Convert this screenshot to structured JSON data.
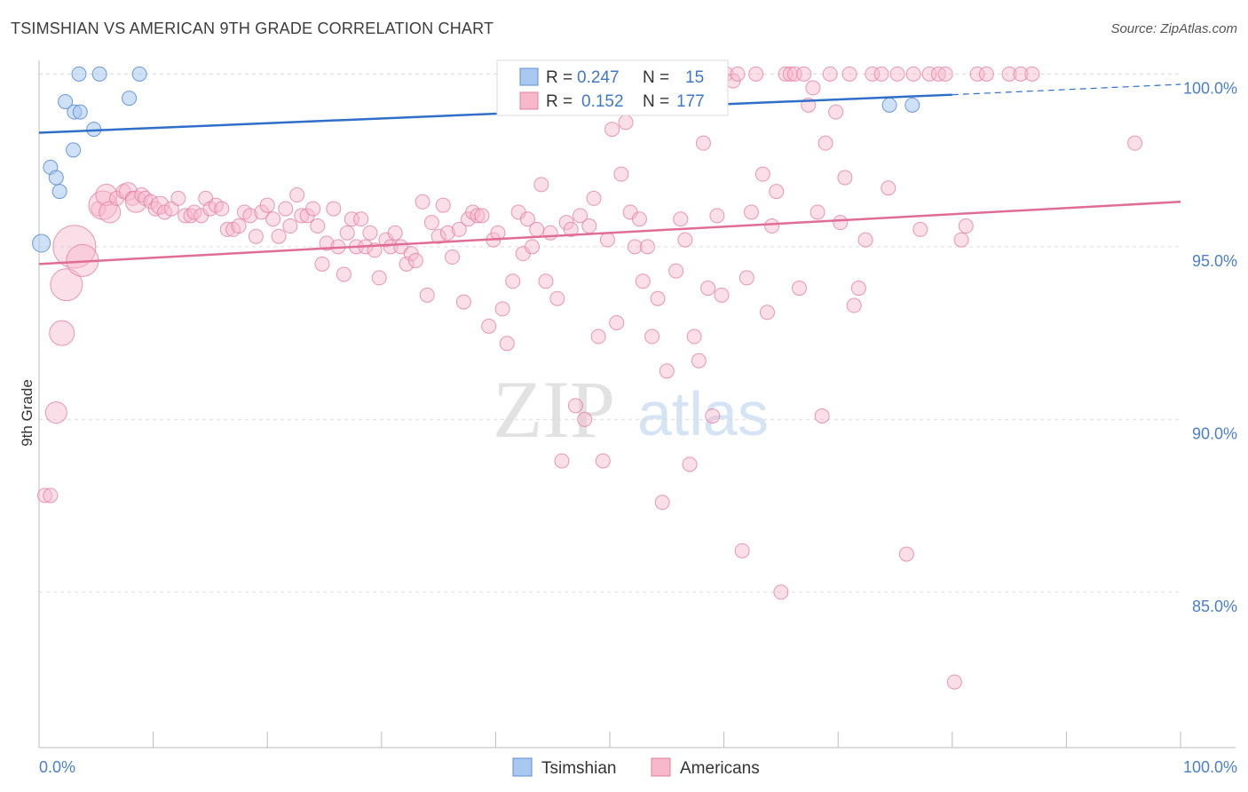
{
  "title": "TSIMSHIAN VS AMERICAN 9TH GRADE CORRELATION CHART",
  "source": "Source: ZipAtlas.com",
  "watermark": {
    "zip": "ZIP",
    "atlas": "atlas"
  },
  "chart_data": {
    "type": "scatter",
    "ylabel": "9th Grade",
    "xlim": [
      0,
      100
    ],
    "ylim": [
      80.5,
      100.6
    ],
    "x_ticks": [
      0,
      10,
      20,
      30,
      40,
      50,
      60,
      70,
      80,
      90,
      100
    ],
    "x_tick_labels": [
      "0.0%",
      "100.0%"
    ],
    "y_ticks": [
      85,
      90,
      95,
      100
    ],
    "y_tick_labels": [
      "85.0%",
      "90.0%",
      "95.0%",
      "100.0%"
    ],
    "grid": true,
    "legend_position": "top-center",
    "colors": {
      "tsimshian_fill": "#a8c8f0",
      "tsimshian_stroke": "#5b8fd6",
      "tsimshian_line": "#2f6fc9",
      "americans_fill": "#f7b8cb",
      "americans_stroke": "#e3809f",
      "americans_line": "#e06d93"
    },
    "series": [
      {
        "name": "Tsimshian",
        "r_label": "R = ",
        "r_value": "0.247",
        "n_label": "N = ",
        "n_value": "15",
        "trend": {
          "x": [
            0,
            80
          ],
          "y": [
            98.3,
            99.4
          ],
          "dashed_to": [
            100,
            99.7
          ]
        },
        "points": [
          [
            0.2,
            95.1,
            10
          ],
          [
            1.0,
            97.3,
            8
          ],
          [
            1.5,
            97.0,
            8
          ],
          [
            1.8,
            96.6,
            8
          ],
          [
            2.3,
            99.2,
            8
          ],
          [
            3.1,
            98.9,
            8
          ],
          [
            3.0,
            97.8,
            8
          ],
          [
            3.5,
            100,
            8
          ],
          [
            3.6,
            98.9,
            8
          ],
          [
            4.8,
            98.4,
            8
          ],
          [
            5.3,
            100,
            8
          ],
          [
            7.9,
            99.3,
            8
          ],
          [
            8.8,
            100,
            8
          ],
          [
            74.5,
            99.1,
            8
          ],
          [
            76.5,
            99.1,
            8
          ]
        ]
      },
      {
        "name": "Americans",
        "r_label": "R = ",
        "r_value": "0.152",
        "n_label": "N = ",
        "n_value": "177",
        "trend": {
          "x": [
            0,
            100
          ],
          "y": [
            94.5,
            96.3
          ]
        },
        "points": [
          [
            0.5,
            87.8,
            8
          ],
          [
            1.0,
            87.8,
            8
          ],
          [
            1.5,
            90.2,
            12
          ],
          [
            2.0,
            92.5,
            14
          ],
          [
            2.4,
            93.9,
            18
          ],
          [
            3.1,
            95.0,
            24
          ],
          [
            3.8,
            94.6,
            18
          ],
          [
            5.2,
            96.1,
            8
          ],
          [
            5.6,
            96.2,
            16
          ],
          [
            5.9,
            96.5,
            12
          ],
          [
            6.2,
            96.0,
            12
          ],
          [
            6.8,
            96.4,
            8
          ],
          [
            7.4,
            96.6,
            8
          ],
          [
            7.8,
            96.6,
            10
          ],
          [
            8.2,
            96.4,
            8
          ],
          [
            8.5,
            96.3,
            12
          ],
          [
            9.0,
            96.5,
            8
          ],
          [
            9.3,
            96.4,
            8
          ],
          [
            9.8,
            96.3,
            8
          ],
          [
            10.2,
            96.1,
            8
          ],
          [
            10.6,
            96.2,
            10
          ],
          [
            11.0,
            96.0,
            8
          ],
          [
            11.6,
            96.1,
            8
          ],
          [
            12.2,
            96.4,
            8
          ],
          [
            12.8,
            95.9,
            8
          ],
          [
            13.3,
            95.9,
            8
          ],
          [
            13.6,
            96.0,
            8
          ],
          [
            14.2,
            95.9,
            8
          ],
          [
            14.6,
            96.4,
            8
          ],
          [
            15.0,
            96.1,
            8
          ],
          [
            15.5,
            96.2,
            8
          ],
          [
            16.0,
            96.1,
            8
          ],
          [
            16.5,
            95.5,
            8
          ],
          [
            17.0,
            95.5,
            8
          ],
          [
            17.5,
            95.6,
            8
          ],
          [
            18.0,
            96.0,
            8
          ],
          [
            18.5,
            95.9,
            8
          ],
          [
            19.0,
            95.3,
            8
          ],
          [
            19.5,
            96.0,
            8
          ],
          [
            20.0,
            96.2,
            8
          ],
          [
            20.5,
            95.8,
            8
          ],
          [
            21.0,
            95.3,
            8
          ],
          [
            21.6,
            96.1,
            8
          ],
          [
            22.0,
            95.6,
            8
          ],
          [
            22.6,
            96.5,
            8
          ],
          [
            23.0,
            95.9,
            8
          ],
          [
            23.5,
            95.9,
            8
          ],
          [
            24.0,
            96.1,
            8
          ],
          [
            24.4,
            95.6,
            8
          ],
          [
            24.8,
            94.5,
            8
          ],
          [
            25.2,
            95.1,
            8
          ],
          [
            25.8,
            96.1,
            8
          ],
          [
            26.2,
            95.0,
            8
          ],
          [
            26.7,
            94.2,
            8
          ],
          [
            27.0,
            95.4,
            8
          ],
          [
            27.4,
            95.8,
            8
          ],
          [
            27.8,
            95.0,
            8
          ],
          [
            28.2,
            95.8,
            8
          ],
          [
            28.6,
            95.0,
            8
          ],
          [
            29.0,
            95.4,
            8
          ],
          [
            29.4,
            94.9,
            8
          ],
          [
            29.8,
            94.1,
            8
          ],
          [
            30.4,
            95.2,
            8
          ],
          [
            30.8,
            95.0,
            8
          ],
          [
            31.2,
            95.4,
            8
          ],
          [
            31.7,
            95.0,
            8
          ],
          [
            32.2,
            94.5,
            8
          ],
          [
            32.6,
            94.8,
            8
          ],
          [
            33.0,
            94.6,
            8
          ],
          [
            33.6,
            96.3,
            8
          ],
          [
            34.0,
            93.6,
            8
          ],
          [
            34.4,
            95.7,
            8
          ],
          [
            35.0,
            95.3,
            8
          ],
          [
            35.4,
            96.2,
            8
          ],
          [
            35.8,
            95.4,
            8
          ],
          [
            36.2,
            94.7,
            8
          ],
          [
            36.8,
            95.5,
            8
          ],
          [
            37.2,
            93.4,
            8
          ],
          [
            37.6,
            95.8,
            8
          ],
          [
            38.0,
            96.0,
            8
          ],
          [
            38.4,
            95.9,
            8
          ],
          [
            38.8,
            95.9,
            8
          ],
          [
            39.4,
            92.7,
            8
          ],
          [
            39.8,
            95.2,
            8
          ],
          [
            40.2,
            95.4,
            8
          ],
          [
            40.6,
            93.2,
            8
          ],
          [
            41.0,
            92.2,
            8
          ],
          [
            41.5,
            94.0,
            8
          ],
          [
            42.0,
            96.0,
            8
          ],
          [
            42.4,
            94.8,
            8
          ],
          [
            42.8,
            95.8,
            8
          ],
          [
            43.2,
            95.0,
            8
          ],
          [
            43.6,
            95.5,
            8
          ],
          [
            44.0,
            96.8,
            8
          ],
          [
            44.4,
            94.0,
            8
          ],
          [
            44.8,
            95.4,
            8
          ],
          [
            45.4,
            93.5,
            8
          ],
          [
            45.8,
            88.8,
            8
          ],
          [
            46.2,
            95.7,
            8
          ],
          [
            46.6,
            95.5,
            8
          ],
          [
            47.0,
            90.4,
            8
          ],
          [
            47.4,
            95.9,
            8
          ],
          [
            47.8,
            90.0,
            8
          ],
          [
            48.2,
            95.6,
            8
          ],
          [
            48.6,
            96.4,
            8
          ],
          [
            49.0,
            92.4,
            8
          ],
          [
            49.4,
            88.8,
            8
          ],
          [
            49.8,
            95.2,
            8
          ],
          [
            50.2,
            98.4,
            8
          ],
          [
            50.6,
            92.8,
            8
          ],
          [
            51.0,
            97.1,
            8
          ],
          [
            51.4,
            98.6,
            8
          ],
          [
            51.8,
            96.0,
            8
          ],
          [
            52.2,
            95.0,
            8
          ],
          [
            52.6,
            95.8,
            8
          ],
          [
            52.9,
            94.0,
            8
          ],
          [
            53.3,
            95.0,
            8
          ],
          [
            53.7,
            92.4,
            8
          ],
          [
            54.2,
            93.5,
            8
          ],
          [
            54.6,
            87.6,
            8
          ],
          [
            55.0,
            91.4,
            8
          ],
          [
            55.4,
            100,
            8
          ],
          [
            55.8,
            94.3,
            8
          ],
          [
            56.2,
            95.8,
            8
          ],
          [
            56.6,
            95.2,
            8
          ],
          [
            57.0,
            88.7,
            8
          ],
          [
            57.4,
            92.4,
            8
          ],
          [
            57.8,
            91.7,
            8
          ],
          [
            58.2,
            98.0,
            8
          ],
          [
            58.6,
            93.8,
            8
          ],
          [
            59.0,
            90.1,
            8
          ],
          [
            59.4,
            95.9,
            8
          ],
          [
            59.8,
            93.6,
            8
          ],
          [
            60.2,
            100,
            8
          ],
          [
            60.8,
            99.8,
            8
          ],
          [
            61.2,
            100,
            8
          ],
          [
            61.6,
            86.2,
            8
          ],
          [
            62.0,
            94.1,
            8
          ],
          [
            62.4,
            96.0,
            8
          ],
          [
            62.8,
            100,
            8
          ],
          [
            63.4,
            97.1,
            8
          ],
          [
            63.8,
            93.1,
            8
          ],
          [
            64.2,
            95.6,
            8
          ],
          [
            64.6,
            96.6,
            8
          ],
          [
            65.0,
            85.0,
            8
          ],
          [
            65.4,
            100,
            8
          ],
          [
            65.8,
            100,
            8
          ],
          [
            66.2,
            100,
            8
          ],
          [
            66.6,
            93.8,
            8
          ],
          [
            67.0,
            100,
            8
          ],
          [
            67.4,
            99.1,
            8
          ],
          [
            67.8,
            99.6,
            8
          ],
          [
            68.2,
            96.0,
            8
          ],
          [
            68.6,
            90.1,
            8
          ],
          [
            68.9,
            98.0,
            8
          ],
          [
            69.3,
            100,
            8
          ],
          [
            69.8,
            98.9,
            8
          ],
          [
            70.2,
            95.7,
            8
          ],
          [
            70.6,
            97.0,
            8
          ],
          [
            71.0,
            100,
            8
          ],
          [
            71.4,
            93.3,
            8
          ],
          [
            71.8,
            93.8,
            8
          ],
          [
            72.4,
            95.2,
            8
          ],
          [
            73.0,
            100,
            8
          ],
          [
            73.8,
            100,
            8
          ],
          [
            74.4,
            96.7,
            8
          ],
          [
            75.2,
            100,
            8
          ],
          [
            76.0,
            86.1,
            8
          ],
          [
            76.6,
            100,
            8
          ],
          [
            77.2,
            95.5,
            8
          ],
          [
            78.0,
            100,
            8
          ],
          [
            78.8,
            100,
            8
          ],
          [
            79.4,
            100,
            8
          ],
          [
            80.2,
            82.4,
            8
          ],
          [
            80.8,
            95.2,
            8
          ],
          [
            81.2,
            95.6,
            8
          ],
          [
            82.2,
            100,
            8
          ],
          [
            83.0,
            100,
            8
          ],
          [
            85.0,
            100,
            8
          ],
          [
            86.0,
            100,
            8
          ],
          [
            87.0,
            100,
            8
          ],
          [
            96.0,
            98.0,
            8
          ]
        ]
      }
    ]
  }
}
